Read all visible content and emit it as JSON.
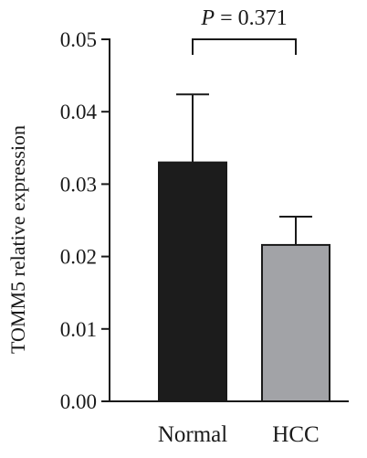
{
  "chart_data": {
    "type": "bar",
    "categories": [
      "Normal",
      "HCC"
    ],
    "values": [
      0.033,
      0.0216
    ],
    "errors_upper": [
      0.0094,
      0.0039
    ],
    "bar_colors": [
      "#1c1c1c",
      "#a2a3a7"
    ],
    "ylabel": "TOMM5 relative expression",
    "ylim": [
      0,
      0.05
    ],
    "yticks": [
      "0.00",
      "0.01",
      "0.02",
      "0.03",
      "0.04",
      "0.05"
    ],
    "ytick_values": [
      0,
      0.01,
      0.02,
      0.03,
      0.04,
      0.05
    ],
    "grid": false,
    "annotation": {
      "p_symbol": "P",
      "p_rest": " = 0.371"
    }
  }
}
